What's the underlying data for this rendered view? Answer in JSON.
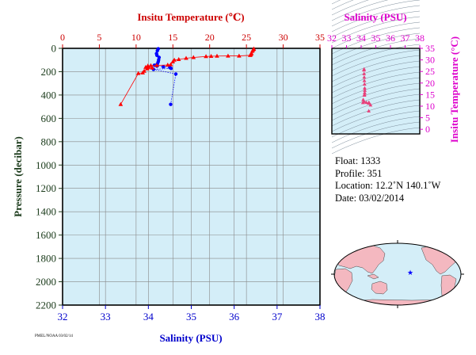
{
  "chart_data": [
    {
      "type": "line",
      "axes": {
        "top": {
          "label": "Insitu Temperature (℃)",
          "range": [
            0,
            35
          ],
          "ticks": [
            0,
            5,
            10,
            15,
            20,
            25,
            30,
            35
          ],
          "color": "#cc0000"
        },
        "bottom": {
          "label": "Salinity (PSU)",
          "range": [
            32,
            38
          ],
          "ticks": [
            32,
            33,
            34,
            35,
            36,
            37,
            38
          ],
          "color": "#0000cc"
        },
        "left": {
          "label": "Pressure (decibar)",
          "range": [
            0,
            2200
          ],
          "inverted": true,
          "ticks": [
            0,
            200,
            400,
            600,
            800,
            1000,
            1200,
            1400,
            1600,
            1800,
            2000,
            2200
          ],
          "color": "#1a3a1a"
        }
      },
      "background": "#d4eef8",
      "grid": true,
      "series": [
        {
          "variable": "temperature",
          "color": "#ff0000",
          "marker": "triangle",
          "points": [
            [
              26.0,
              4
            ],
            [
              26.0,
              8
            ],
            [
              25.9,
              15
            ],
            [
              25.8,
              25
            ],
            [
              25.7,
              45
            ],
            [
              25.6,
              55
            ],
            [
              25.5,
              60
            ],
            [
              24.0,
              65
            ],
            [
              22.5,
              65
            ],
            [
              21.0,
              66
            ],
            [
              20.2,
              68
            ],
            [
              19.5,
              70
            ],
            [
              17.8,
              78
            ],
            [
              16.8,
              85
            ],
            [
              15.8,
              95
            ],
            [
              15.2,
              100
            ],
            [
              15.0,
              115
            ],
            [
              14.7,
              140
            ],
            [
              14.3,
              143
            ],
            [
              12.8,
              146
            ],
            [
              12.0,
              148
            ],
            [
              11.6,
              150
            ],
            [
              11.6,
              157
            ],
            [
              11.3,
              162
            ],
            [
              11.6,
              165
            ],
            [
              12.2,
              168
            ],
            [
              11.5,
              175
            ],
            [
              11.1,
              195
            ],
            [
              10.9,
              210
            ],
            [
              10.3,
              215
            ],
            [
              7.9,
              480
            ]
          ]
        },
        {
          "variable": "salinity",
          "color": "#0000ff",
          "marker": "circle",
          "points": [
            [
              34.23,
              4
            ],
            [
              34.21,
              20
            ],
            [
              34.19,
              45
            ],
            [
              34.2,
              60
            ],
            [
              34.25,
              78
            ],
            [
              34.24,
              98
            ],
            [
              34.23,
              115
            ],
            [
              34.21,
              132
            ],
            [
              34.14,
              145
            ],
            [
              34.2,
              152
            ],
            [
              34.35,
              158
            ],
            [
              34.5,
              165
            ],
            [
              34.53,
              172
            ],
            [
              34.12,
              180
            ],
            [
              34.64,
              220
            ],
            [
              34.52,
              480
            ]
          ]
        }
      ]
    },
    {
      "type": "scatter",
      "axes": {
        "top": {
          "label": "Salinity (PSU)",
          "range": [
            32,
            38
          ],
          "ticks": [
            32,
            33,
            34,
            35,
            36,
            37,
            38
          ],
          "color": "#dd00cc"
        },
        "right": {
          "label": "Insitu Temperature (°C)",
          "range": [
            -2,
            35
          ],
          "ticks": [
            0,
            5,
            10,
            15,
            20,
            25,
            30,
            35
          ],
          "color": "#dd00cc"
        }
      },
      "background": "#d4eef8",
      "points_color": "#e8407a",
      "points": [
        [
          34.2,
          26.0
        ],
        [
          34.19,
          25.6
        ],
        [
          34.2,
          24.0
        ],
        [
          34.21,
          22.5
        ],
        [
          34.22,
          21.0
        ],
        [
          34.23,
          19.5
        ],
        [
          34.24,
          17.8
        ],
        [
          34.25,
          16.8
        ],
        [
          34.24,
          15.8
        ],
        [
          34.23,
          15.0
        ],
        [
          34.22,
          14.7
        ],
        [
          34.14,
          12.8
        ],
        [
          34.2,
          12.0
        ],
        [
          34.35,
          11.6
        ],
        [
          34.5,
          11.3
        ],
        [
          34.53,
          11.6
        ],
        [
          34.12,
          11.5
        ],
        [
          34.64,
          10.5
        ],
        [
          34.52,
          7.9
        ]
      ]
    }
  ],
  "info": {
    "float": "Float:  1333",
    "profile": "Profile:  351",
    "location": "Location:  12.2˚N  140.1˚W",
    "date": "Date:  03/02/2014"
  },
  "map": {
    "land_color": "#f4b8c0",
    "ocean_color": "#d4eef8",
    "marker_color": "#0000ff",
    "marker_lat": 12.2,
    "marker_lon": -140.1
  },
  "stamp": "PMEL/NOAA 03/02/14"
}
